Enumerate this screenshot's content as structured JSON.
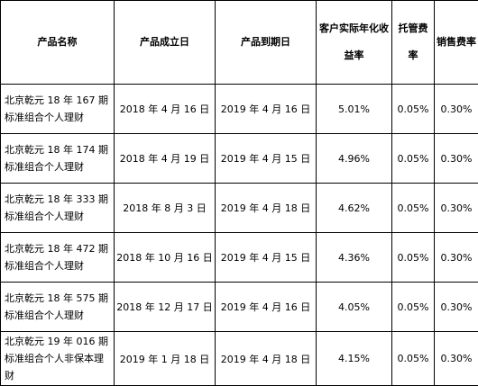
{
  "headers": {
    "name": "产品名称",
    "start": "产品成立日",
    "end": "产品到期日",
    "yield": "客户实际年化收益率",
    "custody": "托管费率",
    "sales": "销售费率"
  },
  "rows": [
    {
      "name": "北京乾元 18 年 167 期标准组合个人理财",
      "start": "2018 年 4 月 16 日",
      "end": "2019 年 4 月 16 日",
      "yield": "5.01%",
      "custody": "0.05%",
      "sales": "0.30%"
    },
    {
      "name": "北京乾元 18 年 174 期标准组合个人理财",
      "start": "2018 年 4 月 19 日",
      "end": "2019 年 4 月 15 日",
      "yield": "4.96%",
      "custody": "0.05%",
      "sales": "0.30%"
    },
    {
      "name": "北京乾元 18 年 333 期标准组合个人理财",
      "start": "2018 年 8 月 3 日",
      "end": "2019 年 4 月 18 日",
      "yield": "4.62%",
      "custody": "0.05%",
      "sales": "0.30%"
    },
    {
      "name": "北京乾元 18 年 472 期标准组合个人理财",
      "start": "2018 年 10 月 16 日",
      "end": "2019 年 4 月 15 日",
      "yield": "4.36%",
      "custody": "0.05%",
      "sales": "0.30%"
    },
    {
      "name": "北京乾元 18 年 575 期标准组合个人理财",
      "start": "2018 年 12 月 17 日",
      "end": "2019 年 4 月 16 日",
      "yield": "4.05%",
      "custody": "0.05%",
      "sales": "0.30%"
    },
    {
      "name": "北京乾元 19 年 016 期标准组合个人非保本理财",
      "start": "2019 年 1 月 18 日",
      "end": "2019 年 4 月 18 日",
      "yield": "4.15%",
      "custody": "0.05%",
      "sales": "0.30%"
    }
  ]
}
